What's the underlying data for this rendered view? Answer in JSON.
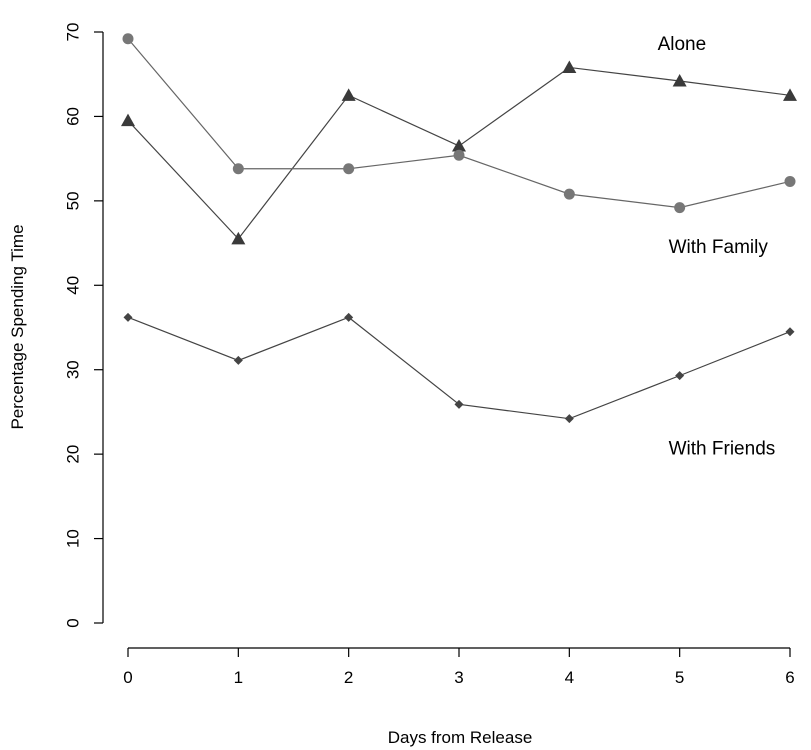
{
  "chart_data": {
    "type": "line",
    "title": "",
    "xlabel": "Days from Release",
    "ylabel": "Percentage Spending Time",
    "x": [
      0,
      1,
      2,
      3,
      4,
      5,
      6
    ],
    "xlim": [
      0,
      6
    ],
    "ylim": [
      0,
      70
    ],
    "xticks": [
      "0",
      "1",
      "2",
      "3",
      "4",
      "5",
      "6"
    ],
    "yticks": [
      "0",
      "10",
      "20",
      "30",
      "40",
      "50",
      "60",
      "70"
    ],
    "grid": false,
    "series": [
      {
        "name": "Alone",
        "marker": "triangle",
        "line_color": "#444444",
        "marker_color": "#3a3a3a",
        "values": [
          59.5,
          45.5,
          62.5,
          56.5,
          65.8,
          64.2,
          62.5
        ]
      },
      {
        "name": "With Family",
        "marker": "circle",
        "line_color": "#666666",
        "marker_color": "#777777",
        "values": [
          69.2,
          53.8,
          53.8,
          55.4,
          50.8,
          49.2,
          52.3
        ]
      },
      {
        "name": "With Friends",
        "marker": "diamond",
        "line_color": "#444444",
        "marker_color": "#444444",
        "values": [
          36.2,
          31.1,
          36.2,
          25.9,
          24.2,
          29.3,
          34.5
        ]
      }
    ],
    "annotations": [
      {
        "text": "Alone",
        "x": 4.8,
        "y": 68.5
      },
      {
        "text": "With Family",
        "x": 4.9,
        "y": 44.5
      },
      {
        "text": "With Friends",
        "x": 4.9,
        "y": 20.6
      }
    ]
  }
}
